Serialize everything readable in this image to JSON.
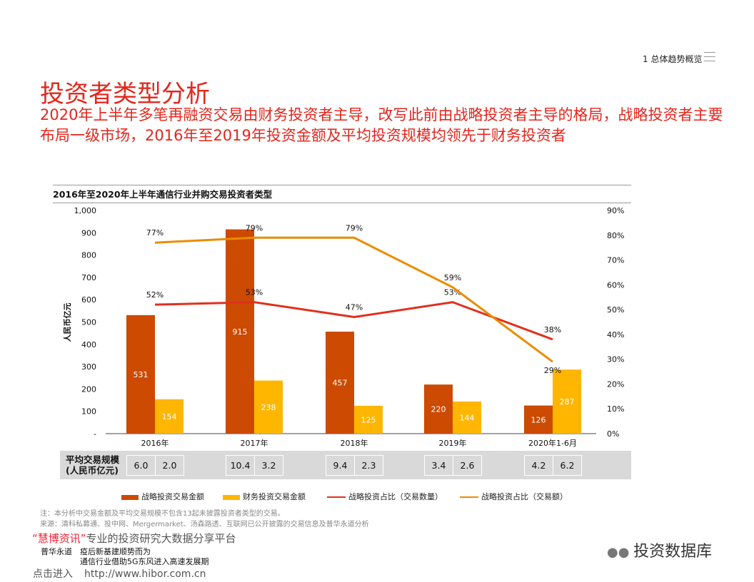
{
  "header": {
    "section": "1 总体趋势概览",
    "menu_icon": "hamburger-icon"
  },
  "title": "投资者类型分析",
  "subtitle": "2020年上半年多笔再融资交易由财务投资者主导，改写此前由战略投资者主导的格局，战略投资者主要布局一级市场，2016年至2019年投资金额及平均投资规模均领先于财务投资者",
  "chart_data": {
    "type": "bar+line",
    "title": "2016年至2020年上半年通信行业并购交易投资者类型",
    "categories": [
      "2016年",
      "2017年",
      "2018年",
      "2019年",
      "2020年1-6月"
    ],
    "ylabel": "人民币亿元",
    "ylim": [
      0,
      1000
    ],
    "y_ticks": [
      "-",
      "100",
      "200",
      "300",
      "400",
      "500",
      "600",
      "700",
      "800",
      "900",
      "1,000"
    ],
    "y2lim": [
      0,
      90
    ],
    "y2_ticks": [
      "0%",
      "10%",
      "20%",
      "30%",
      "40%",
      "50%",
      "60%",
      "70%",
      "80%",
      "90%"
    ],
    "series": [
      {
        "name": "战略投资交易金额",
        "type": "bar",
        "axis": "left",
        "color": "#cc4a02",
        "values": [
          531,
          915,
          457,
          220,
          126
        ]
      },
      {
        "name": "财务投资交易金额",
        "type": "bar",
        "axis": "left",
        "color": "#ffb600",
        "values": [
          154,
          238,
          125,
          144,
          287
        ]
      },
      {
        "name": "战略投资占比（交易数量）",
        "type": "line",
        "axis": "right",
        "color": "#e0301e",
        "values": [
          52,
          53,
          47,
          53,
          38
        ]
      },
      {
        "name": "战略投资占比（交易额）",
        "type": "line",
        "axis": "right",
        "color": "#eb8c00",
        "values": [
          77,
          79,
          79,
          59,
          29
        ]
      }
    ],
    "legend": "bottom"
  },
  "avg_table": {
    "label_line1": "平均交易规模",
    "label_line2": "(人民币亿元)",
    "strategic": [
      "6.0",
      "10.4",
      "9.4",
      "3.4",
      "4.2"
    ],
    "financial": [
      "2.0",
      "3.2",
      "2.3",
      "2.6",
      "6.2"
    ]
  },
  "note": "注：本分析中交易金额及平均交易规模不包含13起未披露投资者类型的交易。",
  "source": "来源：清科私募通、投中网、Mergermarket、汤森路透、互联网已公开披露的交易信息及普华永道分析",
  "footer": {
    "promo_brand": "“慧博资讯”",
    "promo_text": "专业的投资研究大数据分享平台",
    "click": "点击进入",
    "url": "http://www.hibor.com.cn",
    "pwc": "普华永道",
    "article1": "疫后新基建顺势而为",
    "article2": "通信行业借助5G东风进入高速发展期",
    "wechat": "投资数据库"
  }
}
